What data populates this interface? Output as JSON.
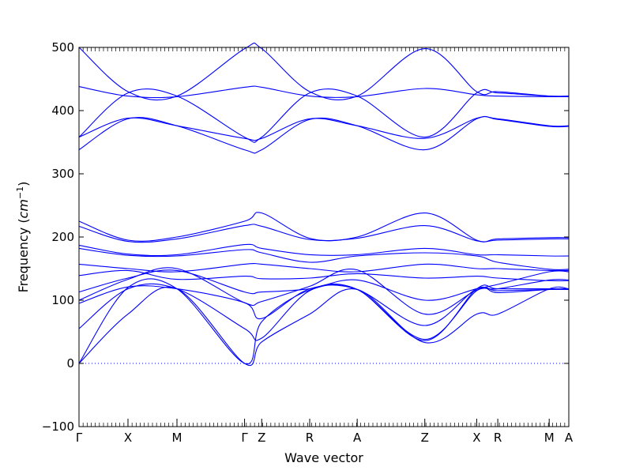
{
  "chart_data": {
    "type": "line",
    "xlabel": "Wave vector",
    "ylabel": "Frequency",
    "ylabel_unit": "cm",
    "ylabel_unit_exp": "−1",
    "ylim": [
      -100,
      500
    ],
    "yticks": [
      -100,
      0,
      100,
      200,
      300,
      400,
      500
    ],
    "xlim": [
      0,
      10
    ],
    "xticks": [
      {
        "label": "Γ",
        "x": 0
      },
      {
        "label": "X",
        "x": 1
      },
      {
        "label": "M",
        "x": 2
      },
      {
        "label": "Γ",
        "x": 3.38
      },
      {
        "label": "Z",
        "x": 3.73
      },
      {
        "label": "R",
        "x": 4.71
      },
      {
        "label": "A",
        "x": 5.68
      },
      {
        "label": "Z",
        "x": 7.06
      },
      {
        "label": "X",
        "x": 8.12
      },
      {
        "label": "R",
        "x": 8.55
      },
      {
        "label": "M",
        "x": 9.6
      },
      {
        "label": "A",
        "x": 10
      }
    ],
    "zero_line": true,
    "line_color": "#0000ff",
    "grid": false,
    "series": [
      {
        "x": [
          0,
          1,
          2,
          3.38,
          3.73,
          4.71,
          5.68,
          7.06,
          8.12,
          8.55,
          9.6,
          10
        ],
        "y": [
          500,
          430,
          423,
          498,
          498,
          430,
          423,
          498,
          430,
          430,
          423,
          423
        ]
      },
      {
        "x": [
          0,
          1,
          2,
          3.38,
          3.73,
          4.71,
          5.68,
          7.06,
          8.12,
          8.55,
          9.6,
          10
        ],
        "y": [
          438,
          423,
          422,
          437,
          437,
          423,
          422,
          435,
          425,
          423,
          422,
          422
        ]
      },
      {
        "x": [
          0,
          1,
          2,
          3.38,
          3.73,
          4.71,
          5.68,
          7.06,
          8.12,
          8.55,
          9.6,
          10
        ],
        "y": [
          358,
          428,
          423,
          358,
          358,
          428,
          423,
          358,
          428,
          428,
          423,
          423
        ]
      },
      {
        "x": [
          0,
          1,
          2,
          3.38,
          3.73,
          4.71,
          5.68,
          7.06,
          8.12,
          8.55,
          9.6,
          10
        ],
        "y": [
          358,
          388,
          376,
          356,
          356,
          387,
          376,
          356,
          388,
          387,
          376,
          376
        ]
      },
      {
        "x": [
          0,
          1,
          2,
          3.38,
          3.73,
          4.71,
          5.68,
          7.06,
          8.12,
          8.55,
          9.6,
          10
        ],
        "y": [
          338,
          387,
          376,
          338,
          338,
          386,
          376,
          338,
          387,
          386,
          375,
          375
        ]
      },
      {
        "x": [
          0,
          1,
          2,
          3.38,
          3.73,
          4.71,
          5.68,
          7.06,
          8.12,
          8.55,
          9.6,
          10
        ],
        "y": [
          225,
          195,
          200,
          225,
          238,
          198,
          200,
          238,
          195,
          197,
          199,
          199
        ]
      },
      {
        "x": [
          0,
          1,
          2,
          3.38,
          3.73,
          4.71,
          5.68,
          7.06,
          8.12,
          8.55,
          9.6,
          10
        ],
        "y": [
          217,
          193,
          197,
          218,
          217,
          196,
          198,
          218,
          194,
          195,
          197,
          197
        ]
      },
      {
        "x": [
          0,
          1,
          2,
          3.38,
          3.73,
          4.71,
          5.68,
          7.06,
          8.12,
          8.55,
          9.6,
          10
        ],
        "y": [
          187,
          173,
          172,
          188,
          182,
          172,
          172,
          182,
          172,
          172,
          170,
          170
        ]
      },
      {
        "x": [
          0,
          1,
          2,
          3.38,
          3.73,
          4.71,
          5.68,
          7.06,
          8.12,
          8.55,
          9.6,
          10
        ],
        "y": [
          182,
          171,
          170,
          180,
          175,
          160,
          170,
          175,
          170,
          160,
          149,
          149
        ]
      },
      {
        "x": [
          0,
          1,
          2,
          3.38,
          3.73,
          4.71,
          5.68,
          7.06,
          8.12,
          8.55,
          9.6,
          10
        ],
        "y": [
          157,
          150,
          145,
          157,
          157,
          150,
          145,
          157,
          150,
          150,
          147,
          147
        ]
      },
      {
        "x": [
          0,
          1,
          2,
          3.38,
          3.73,
          4.71,
          5.68,
          7.06,
          8.12,
          8.55,
          9.6,
          10
        ],
        "y": [
          139,
          147,
          133,
          138,
          134,
          135,
          142,
          135,
          138,
          135,
          131,
          131
        ]
      },
      {
        "x": [
          0,
          1,
          2,
          3.38,
          3.73,
          4.71,
          5.68,
          7.06,
          8.12,
          8.55,
          9.6,
          10
        ],
        "y": [
          113,
          135,
          147,
          113,
          113,
          118,
          132,
          100,
          118,
          125,
          145,
          145
        ]
      },
      {
        "x": [
          0,
          1,
          2,
          3.38,
          3.73,
          4.71,
          5.68,
          7.06,
          8.12,
          8.55,
          9.6,
          10
        ],
        "y": [
          100,
          133,
          150,
          96,
          98,
          122,
          148,
          78,
          116,
          118,
          132,
          132
        ]
      },
      {
        "x": [
          0,
          1,
          2,
          3.38,
          3.73,
          4.71,
          5.68,
          7.06,
          8.12,
          8.55,
          9.6,
          10
        ],
        "y": [
          95,
          121,
          118,
          96,
          71,
          118,
          117,
          60,
          118,
          112,
          117,
          117
        ]
      },
      {
        "x": [
          0,
          1,
          2,
          3.38,
          3.73,
          4.71,
          5.68,
          7.06,
          8.12,
          8.55,
          9.6,
          10
        ],
        "y": [
          55,
          118,
          118,
          55,
          40,
          115,
          117,
          38,
          115,
          115,
          117,
          117
        ]
      },
      {
        "x": [
          0,
          1,
          2,
          3.38,
          3.73,
          4.71,
          5.68,
          7.06,
          8.12,
          8.55,
          9.6,
          10
        ],
        "y": [
          0,
          78,
          118,
          0,
          34,
          78,
          117,
          33,
          78,
          78,
          118,
          118
        ]
      },
      {
        "x": [
          0,
          1,
          2,
          3.38,
          3.73,
          4.71,
          5.68,
          7.06,
          8.12,
          8.55,
          9.6,
          10
        ],
        "y": [
          0,
          120,
          118,
          0,
          66,
          116,
          117,
          36,
          118,
          118,
          118,
          118
        ]
      }
    ]
  }
}
